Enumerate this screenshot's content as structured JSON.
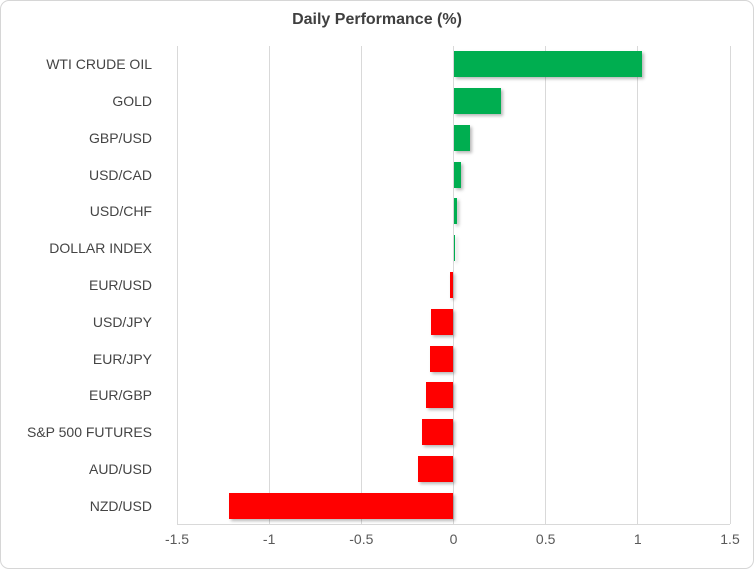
{
  "chart_data": {
    "type": "bar",
    "orientation": "horizontal",
    "title": "Daily Performance (%)",
    "categories": [
      "WTI CRUDE OIL",
      "GOLD",
      "GBP/USD",
      "USD/CAD",
      "USD/CHF",
      "DOLLAR INDEX",
      "EUR/USD",
      "USD/JPY",
      "EUR/JPY",
      "EUR/GBP",
      "S&P 500 FUTURES",
      "AUD/USD",
      "NZD/USD"
    ],
    "values": [
      1.02,
      0.26,
      0.09,
      0.04,
      0.02,
      0.01,
      -0.02,
      -0.12,
      -0.13,
      -0.15,
      -0.17,
      -0.19,
      -1.22
    ],
    "xlabel": "",
    "ylabel": "",
    "xlim": [
      -1.5,
      1.5
    ],
    "x_ticks": [
      -1.5,
      -1,
      -0.5,
      0,
      0.5,
      1,
      1.5
    ],
    "x_tick_labels": [
      "-1.5",
      "-1",
      "-0.5",
      "0",
      "0.5",
      "1",
      "1.5"
    ],
    "grid": true,
    "legend": false,
    "colors": {
      "positive": "#00AE50",
      "negative": "#FF0000",
      "gridline": "#D9D9D9",
      "tick_label": "#595959",
      "category_label": "#444444",
      "title": "#3F3F3F"
    }
  }
}
